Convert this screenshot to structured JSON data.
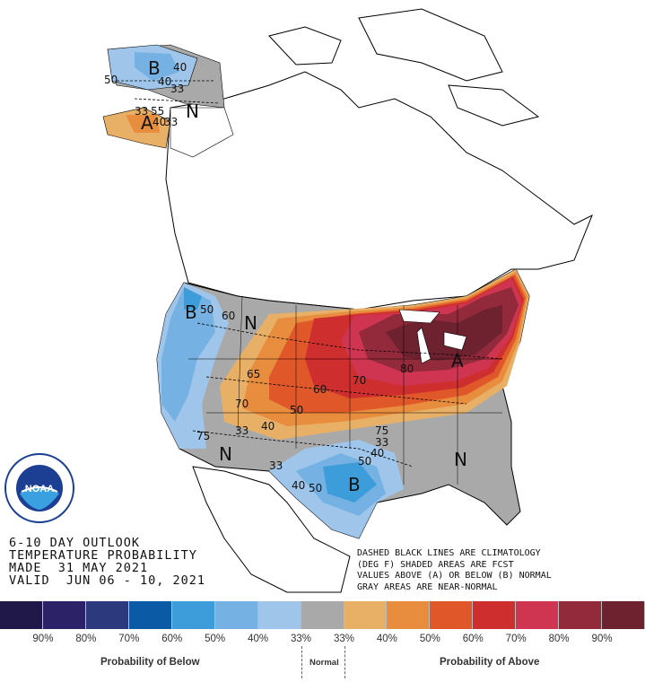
{
  "title_block": {
    "line1": "6-10 DAY OUTLOOK",
    "line2": "TEMPERATURE PROBABILITY",
    "line3": "MADE  31 MAY 2021",
    "line4": "VALID  JUN 06 - 10, 2021"
  },
  "legend_note": {
    "line1": "DASHED BLACK LINES ARE CLIMATOLOGY",
    "line2": "(DEG F) SHADED AREAS ARE FCST",
    "line3": "VALUES ABOVE (A) OR BELOW (B) NORMAL",
    "line4": "GRAY AREAS ARE NEAR-NORMAL"
  },
  "logo_text": "NOAA",
  "map_letters": {
    "alaska_b": "B",
    "alaska_n": "N",
    "alaska_a": "A",
    "west_b": "B",
    "nw_n": "N",
    "sw_n": "N",
    "texas_b": "B",
    "se_n": "N",
    "ne_a": "A"
  },
  "contour_labels": {
    "ak_40a": "40",
    "ak_40b": "40",
    "ak_33a": "33",
    "ak_50": "50",
    "ak_33b": "33",
    "ak_55": "55",
    "ak_40c": "40",
    "ak_33c": "33",
    "w_50": "50",
    "w_60": "60",
    "c_65": "65",
    "c_70": "70",
    "c_40": "40",
    "c_50": "50",
    "c_60": "60",
    "e_70": "70",
    "e_80": "80",
    "sw_75": "75",
    "sw_33": "33",
    "s_33": "33",
    "tx_75": "75",
    "tx_33": "33",
    "tx_40": "40",
    "tx_50": "50",
    "tx_40b": "40",
    "tx_50b": "50"
  },
  "colorbar": {
    "colors": [
      "#1f1849",
      "#2b2268",
      "#2c3a7d",
      "#0b5aa5",
      "#3d9ddb",
      "#75b2e3",
      "#9fc6ea",
      "#a9a9a9",
      "#e8b066",
      "#e88c3e",
      "#e0582a",
      "#cf2e2e",
      "#cf3550",
      "#922a3c",
      "#6e2230"
    ],
    "labels": [
      "90%",
      "80%",
      "70%",
      "60%",
      "50%",
      "40%",
      "33%",
      "33%",
      "40%",
      "50%",
      "60%",
      "70%",
      "80%",
      "90%"
    ]
  },
  "categories": {
    "below": "Probability of Below",
    "normal": "Normal",
    "above": "Probability of Above"
  }
}
